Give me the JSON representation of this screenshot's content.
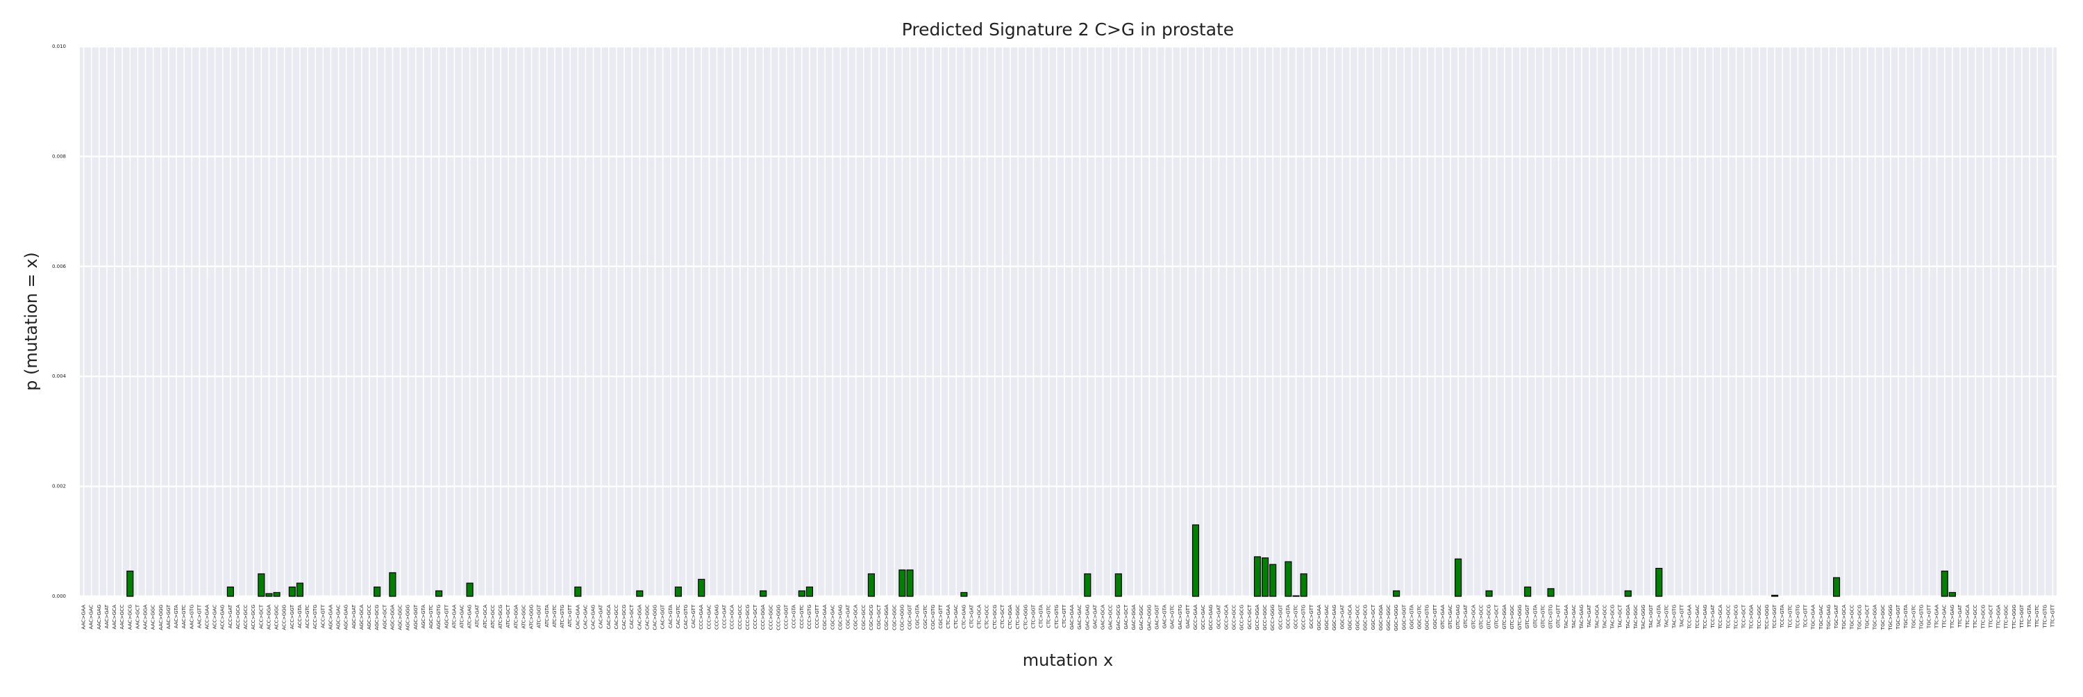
{
  "chart_data": {
    "type": "bar",
    "title": "Predicted Signature 2 C>G in prostate",
    "xlabel": "mutation x",
    "ylabel": "p (mutation = x)",
    "color": "#008000",
    "grid": true,
    "categories": [
      "AAC>GAA",
      "AAC>GAC",
      "AAC>GAG",
      "AAC>GAT",
      "AAC>GCA",
      "AAC>GCC",
      "AAC>GCG",
      "AAC>GCT",
      "AAC>GGA",
      "AAC>GGC",
      "AAC>GGG",
      "AAC>GGT",
      "AAC>GTA",
      "AAC>GTC",
      "AAC>GTG",
      "AAC>GTT",
      "ACC>GAA",
      "ACC>GAC",
      "ACC>GAG",
      "ACC>GAT",
      "ACC>GCA",
      "ACC>GCC",
      "ACC>GCG",
      "ACC>GCT",
      "ACC>GGA",
      "ACC>GGC",
      "ACC>GGG",
      "ACC>GGT",
      "ACC>GTA",
      "ACC>GTC",
      "ACC>GTG",
      "ACC>GTT",
      "AGC>GAA",
      "AGC>GAC",
      "AGC>GAG",
      "AGC>GAT",
      "AGC>GCA",
      "AGC>GCC",
      "AGC>GCG",
      "AGC>GCT",
      "AGC>GGA",
      "AGC>GGC",
      "AGC>GGG",
      "AGC>GGT",
      "AGC>GTA",
      "AGC>GTC",
      "AGC>GTG",
      "AGC>GTT",
      "ATC>GAA",
      "ATC>GAC",
      "ATC>GAG",
      "ATC>GAT",
      "ATC>GCA",
      "ATC>GCC",
      "ATC>GCG",
      "ATC>GCT",
      "ATC>GGA",
      "ATC>GGC",
      "ATC>GGG",
      "ATC>GGT",
      "ATC>GTA",
      "ATC>GTC",
      "ATC>GTG",
      "ATC>GTT",
      "CAC>GAA",
      "CAC>GAC",
      "CAC>GAG",
      "CAC>GAT",
      "CAC>GCA",
      "CAC>GCC",
      "CAC>GCG",
      "CAC>GCT",
      "CAC>GGA",
      "CAC>GGC",
      "CAC>GGG",
      "CAC>GGT",
      "CAC>GTA",
      "CAC>GTC",
      "CAC>GTG",
      "CAC>GTT",
      "CCC>GAA",
      "CCC>GAC",
      "CCC>GAG",
      "CCC>GAT",
      "CCC>GCA",
      "CCC>GCC",
      "CCC>GCG",
      "CCC>GCT",
      "CCC>GGA",
      "CCC>GGC",
      "CCC>GGG",
      "CCC>GGT",
      "CCC>GTA",
      "CCC>GTC",
      "CCC>GTG",
      "CCC>GTT",
      "CGC>GAA",
      "CGC>GAC",
      "CGC>GAG",
      "CGC>GAT",
      "CGC>GCA",
      "CGC>GCC",
      "CGC>GCG",
      "CGC>GCT",
      "CGC>GGA",
      "CGC>GGC",
      "CGC>GGG",
      "CGC>GGT",
      "CGC>GTA",
      "CGC>GTC",
      "CGC>GTG",
      "CGC>GTT",
      "CTC>GAA",
      "CTC>GAC",
      "CTC>GAG",
      "CTC>GAT",
      "CTC>GCA",
      "CTC>GCC",
      "CTC>GCG",
      "CTC>GCT",
      "CTC>GGA",
      "CTC>GGC",
      "CTC>GGG",
      "CTC>GGT",
      "CTC>GTA",
      "CTC>GTC",
      "CTC>GTG",
      "CTC>GTT",
      "GAC>GAA",
      "GAC>GAC",
      "GAC>GAG",
      "GAC>GAT",
      "GAC>GCA",
      "GAC>GCC",
      "GAC>GCG",
      "GAC>GCT",
      "GAC>GGA",
      "GAC>GGC",
      "GAC>GGG",
      "GAC>GGT",
      "GAC>GTA",
      "GAC>GTC",
      "GAC>GTG",
      "GAC>GTT",
      "GCC>GAA",
      "GCC>GAC",
      "GCC>GAG",
      "GCC>GAT",
      "GCC>GCA",
      "GCC>GCC",
      "GCC>GCG",
      "GCC>GCT",
      "GCC>GGA",
      "GCC>GGC",
      "GCC>GGG",
      "GCC>GGT",
      "GCC>GTA",
      "GCC>GTC",
      "GCC>GTG",
      "GCC>GTT",
      "GGC>GAA",
      "GGC>GAC",
      "GGC>GAG",
      "GGC>GAT",
      "GGC>GCA",
      "GGC>GCC",
      "GGC>GCG",
      "GGC>GCT",
      "GGC>GGA",
      "GGC>GGC",
      "GGC>GGG",
      "GGC>GGT",
      "GGC>GTA",
      "GGC>GTC",
      "GGC>GTG",
      "GGC>GTT",
      "GTC>GAA",
      "GTC>GAC",
      "GTC>GAG",
      "GTC>GAT",
      "GTC>GCA",
      "GTC>GCC",
      "GTC>GCG",
      "GTC>GCT",
      "GTC>GGA",
      "GTC>GGC",
      "GTC>GGG",
      "GTC>GGT",
      "GTC>GTA",
      "GTC>GTC",
      "GTC>GTG",
      "GTC>GTT",
      "TAC>GAA",
      "TAC>GAC",
      "TAC>GAG",
      "TAC>GAT",
      "TAC>GCA",
      "TAC>GCC",
      "TAC>GCG",
      "TAC>GCT",
      "TAC>GGA",
      "TAC>GGC",
      "TAC>GGG",
      "TAC>GGT",
      "TAC>GTA",
      "TAC>GTC",
      "TAC>GTG",
      "TAC>GTT",
      "TCC>GAA",
      "TCC>GAC",
      "TCC>GAG",
      "TCC>GAT",
      "TCC>GCA",
      "TCC>GCC",
      "TCC>GCG",
      "TCC>GCT",
      "TCC>GGA",
      "TCC>GGC",
      "TCC>GGG",
      "TCC>GGT",
      "TCC>GTA",
      "TCC>GTC",
      "TCC>GTG",
      "TCC>GTT",
      "TGC>GAA",
      "TGC>GAC",
      "TGC>GAG",
      "TGC>GAT",
      "TGC>GCA",
      "TGC>GCC",
      "TGC>GCG",
      "TGC>GCT",
      "TGC>GGA",
      "TGC>GGC",
      "TGC>GGG",
      "TGC>GGT",
      "TGC>GTA",
      "TGC>GTC",
      "TGC>GTG",
      "TGC>GTT",
      "TTC>GAA",
      "TTC>GAC",
      "TTC>GAG",
      "TTC>GAT",
      "TTC>GCA",
      "TTC>GCC",
      "TTC>GCG",
      "TTC>GCT",
      "TTC>GGA",
      "TTC>GGC",
      "TTC>GGG",
      "TTC>GGT",
      "TTC>GTA",
      "TTC>GTC",
      "TTC>GTG",
      "TTC>GTT"
    ],
    "values": [
      0,
      0,
      0,
      0,
      0,
      0,
      0.00046,
      0,
      0,
      0,
      0,
      0,
      0,
      0,
      0,
      0,
      0,
      0,
      0,
      0.00017,
      0,
      0,
      0,
      0.00041,
      5e-05,
      7e-05,
      0,
      0.00017,
      0.00024,
      0,
      0,
      0,
      0,
      0,
      0,
      0,
      0,
      0,
      0.00017,
      0,
      0.00043,
      0,
      0,
      0,
      0,
      0,
      0.0001,
      0,
      0,
      0,
      0.00024,
      0,
      0,
      0,
      0,
      0,
      0,
      0,
      0,
      0,
      0,
      0,
      0,
      0,
      0.00017,
      0,
      0,
      0,
      0,
      0,
      0,
      0,
      0.0001,
      0,
      0,
      0,
      0,
      0.00017,
      0,
      0,
      0.00031,
      0,
      0,
      0,
      0,
      0,
      0,
      0,
      0.0001,
      0,
      0,
      0,
      0,
      0.0001,
      0.00017,
      0,
      0,
      0,
      0,
      0,
      0,
      0,
      0.00041,
      0,
      0,
      0,
      0.00048,
      0.00048,
      0,
      0,
      0,
      0,
      0,
      0,
      7e-05,
      0,
      0,
      0,
      0,
      0,
      0,
      0,
      0,
      0,
      0,
      0,
      0,
      0,
      0,
      0,
      0.00041,
      0,
      0,
      0,
      0.00041,
      0,
      0,
      0,
      0,
      0,
      0,
      0,
      0,
      0,
      0.0013,
      0,
      0,
      0,
      0,
      0,
      0,
      0,
      0.00072,
      0.0007,
      0.00058,
      0,
      0.00063,
      1e-05,
      0.00041,
      0,
      0,
      0,
      0,
      0,
      0,
      0,
      0,
      0,
      0,
      0,
      0.0001,
      0,
      0,
      0,
      0,
      0,
      0,
      0,
      0.00068,
      0,
      0,
      0,
      0.0001,
      0,
      0,
      0,
      0,
      0.00017,
      0,
      0,
      0.00014,
      0,
      0,
      0,
      0,
      0,
      0,
      0,
      0,
      0,
      0.0001,
      0,
      0,
      0,
      0.00051,
      0,
      0,
      0,
      0,
      0,
      0,
      0,
      0,
      0,
      0,
      0,
      0,
      0,
      0,
      2e-05,
      0,
      0,
      0,
      0,
      0,
      0,
      0,
      0.00034,
      0,
      0,
      0,
      0,
      0,
      0,
      0,
      0,
      0,
      0,
      0,
      0,
      0,
      0.00046,
      7e-05,
      0,
      0,
      0,
      0,
      0,
      0,
      0,
      0,
      0,
      0,
      0,
      0,
      0
    ],
    "ylim": [
      0,
      0.01
    ],
    "yticks": [
      {
        "value": 0,
        "label": "0.000"
      },
      {
        "value": 0.002,
        "label": "0.002"
      },
      {
        "value": 0.004,
        "label": "0.004"
      },
      {
        "value": 0.006,
        "label": "0.006"
      },
      {
        "value": 0.008,
        "label": "0.008"
      },
      {
        "value": 0.01,
        "label": "0.010"
      }
    ]
  }
}
